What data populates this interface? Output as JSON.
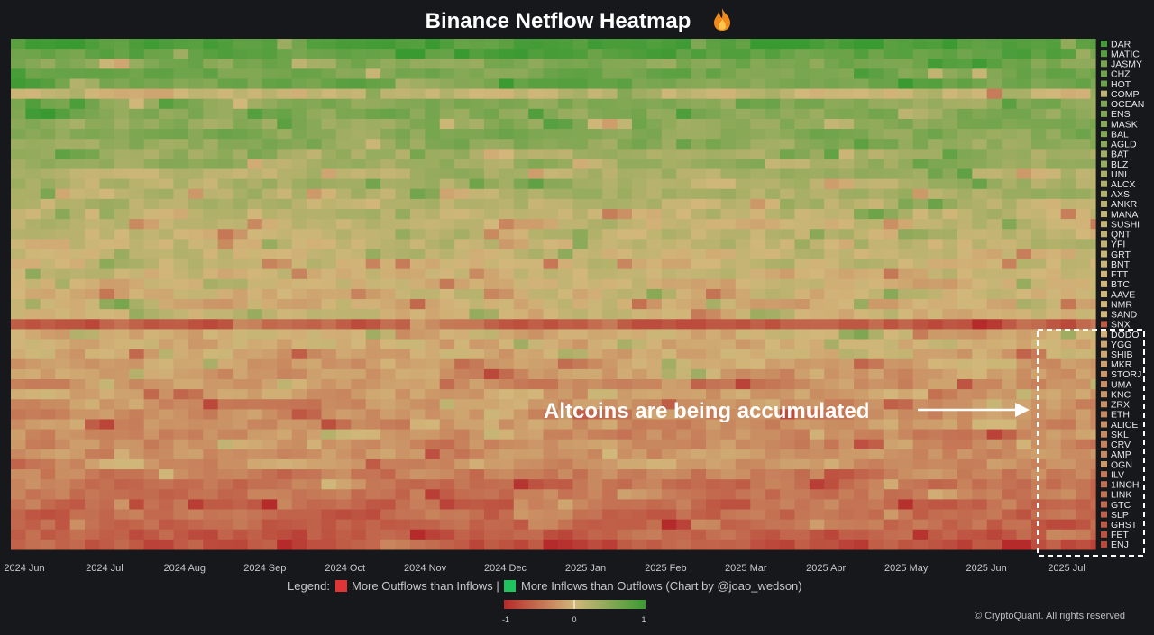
{
  "chart_data": {
    "type": "heatmap",
    "title": "Binance Netflow Heatmap",
    "title_icon": "fire-icon",
    "y_categories": [
      "DAR",
      "MATIC",
      "JASMY",
      "CHZ",
      "HOT",
      "COMP",
      "OCEAN",
      "ENS",
      "MASK",
      "BAL",
      "AGLD",
      "BAT",
      "BLZ",
      "UNI",
      "ALCX",
      "AXS",
      "ANKR",
      "MANA",
      "SUSHI",
      "QNT",
      "YFI",
      "GRT",
      "BNT",
      "FTT",
      "BTC",
      "AAVE",
      "NMR",
      "SAND",
      "SNX",
      "DODO",
      "YGG",
      "SHIB",
      "MKR",
      "STORJ",
      "UMA",
      "KNC",
      "ZRX",
      "ETH",
      "ALICE",
      "SKL",
      "CRV",
      "AMP",
      "OGN",
      "ILV",
      "1INCH",
      "LINK",
      "GTC",
      "SLP",
      "GHST",
      "FET",
      "ENJ"
    ],
    "x_ticks": [
      "2024 Jun",
      "2024 Jul",
      "2024 Aug",
      "2024 Sep",
      "2024 Oct",
      "2024 Nov",
      "2024 Dec",
      "2025 Jan",
      "2025 Feb",
      "2025 Mar",
      "2025 Apr",
      "2025 May",
      "2025 Jun",
      "2025 Jul"
    ],
    "row_mean_netflow": [
      0.85,
      0.75,
      0.55,
      0.6,
      0.62,
      0.1,
      0.5,
      0.5,
      0.45,
      0.48,
      0.45,
      0.3,
      0.35,
      0.25,
      0.22,
      0.2,
      0.15,
      0.1,
      0.08,
      0.12,
      0.1,
      0.05,
      0.05,
      0.02,
      0.0,
      0.02,
      -0.02,
      0.0,
      -0.6,
      -0.05,
      -0.1,
      -0.1,
      -0.15,
      -0.2,
      -0.25,
      -0.2,
      -0.25,
      -0.3,
      -0.25,
      -0.3,
      -0.35,
      -0.3,
      -0.2,
      -0.4,
      -0.45,
      -0.45,
      -0.5,
      -0.55,
      -0.6,
      -0.65,
      -0.7
    ],
    "colorscale": {
      "min": -1,
      "mid": 0,
      "max": 1,
      "min_color": "#b52a2a",
      "mid_color": "#d2b77a",
      "max_color": "#3a9a32"
    },
    "colorbar": {
      "ticks": [
        "-1",
        "0",
        "1"
      ]
    },
    "legend": {
      "prefix": "Legend:",
      "outflow_label": "More Outflows than Inflows |",
      "outflow_color": "#e03535",
      "inflow_label": "More Inflows than Outflows (Chart by @joao_wedson)",
      "inflow_color": "#1fc45f"
    },
    "annotation": {
      "text": "Altcoins are being accumulated",
      "highlight_from": "DODO",
      "highlight_to": "ENJ"
    }
  },
  "copyright": "© CryptoQuant. All rights reserved"
}
